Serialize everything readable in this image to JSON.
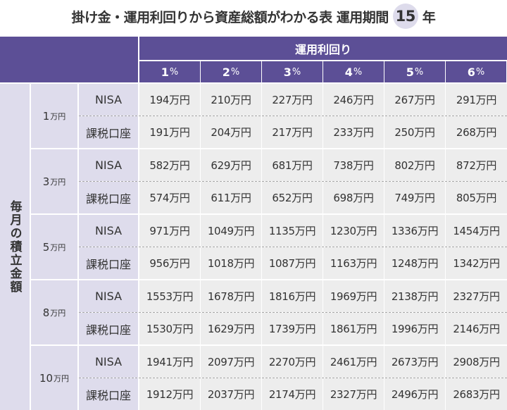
{
  "title": {
    "main": "掛け金・運用利回りから資産総額がわかる表 運用期間",
    "period": "15",
    "unit": "年"
  },
  "header": {
    "group_label": "運用利回り",
    "rates": [
      {
        "num": "1",
        "pct": "%"
      },
      {
        "num": "2",
        "pct": "%"
      },
      {
        "num": "3",
        "pct": "%"
      },
      {
        "num": "4",
        "pct": "%"
      },
      {
        "num": "5",
        "pct": "%"
      },
      {
        "num": "6",
        "pct": "%"
      }
    ]
  },
  "side_label": "毎月の積立金額",
  "account_types": {
    "nisa": "NISA",
    "taxable": "課税口座"
  },
  "groups": [
    {
      "amount": "1",
      "unit": "万円",
      "nisa": [
        "194万円",
        "210万円",
        "227万円",
        "246万円",
        "267万円",
        "291万円"
      ],
      "taxable": [
        "191万円",
        "204万円",
        "217万円",
        "233万円",
        "250万円",
        "268万円"
      ]
    },
    {
      "amount": "3",
      "unit": "万円",
      "nisa": [
        "582万円",
        "629万円",
        "681万円",
        "738万円",
        "802万円",
        "872万円"
      ],
      "taxable": [
        "574万円",
        "611万円",
        "652万円",
        "698万円",
        "749万円",
        "805万円"
      ]
    },
    {
      "amount": "5",
      "unit": "万円",
      "nisa": [
        "971万円",
        "1049万円",
        "1135万円",
        "1230万円",
        "1336万円",
        "1454万円"
      ],
      "taxable": [
        "956万円",
        "1018万円",
        "1087万円",
        "1163万円",
        "1248万円",
        "1342万円"
      ]
    },
    {
      "amount": "8",
      "unit": "万円",
      "nisa": [
        "1553万円",
        "1678万円",
        "1816万円",
        "1969万円",
        "2138万円",
        "2327万円"
      ],
      "taxable": [
        "1530万円",
        "1629万円",
        "1739万円",
        "1861万円",
        "1996万円",
        "2146万円"
      ]
    },
    {
      "amount": "10",
      "unit": "万円",
      "nisa": [
        "1941万円",
        "2097万円",
        "2270万円",
        "2461万円",
        "2673万円",
        "2908万円"
      ],
      "taxable": [
        "1912万円",
        "2037万円",
        "2174万円",
        "2327万円",
        "2496万円",
        "2683万円"
      ]
    }
  ],
  "colors": {
    "header_bg": "#5c4f96",
    "label_bg": "#dedcec",
    "cell_bg": "#ededed",
    "period_circle": "#dddbeb"
  }
}
